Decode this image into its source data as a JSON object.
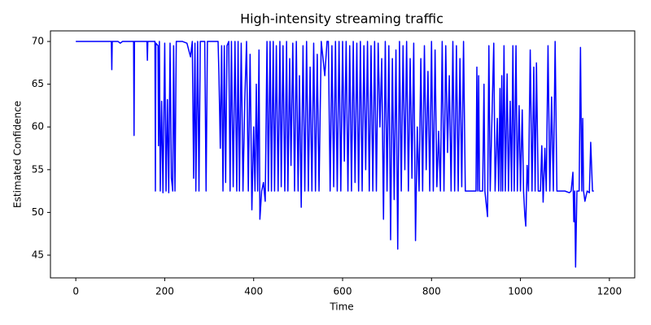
{
  "chart_data": {
    "type": "line",
    "title": "High-intensity streaming traffic",
    "xlabel": "Time",
    "ylabel": "Estimated Confidence",
    "color": "#0000ff",
    "x": [
      0,
      80,
      81,
      82,
      95,
      100,
      105,
      130,
      131,
      132,
      160,
      161,
      162,
      178,
      179,
      180,
      185,
      186,
      188,
      190,
      193,
      196,
      200,
      203,
      206,
      209,
      212,
      215,
      218,
      220,
      223,
      226,
      240,
      250,
      258,
      262,
      265,
      268,
      270,
      274,
      277,
      280,
      290,
      293,
      296,
      320,
      322,
      325,
      328,
      331,
      334,
      337,
      340,
      344,
      347,
      350,
      354,
      358,
      362,
      365,
      368,
      372,
      376,
      380,
      384,
      388,
      392,
      396,
      400,
      403,
      406,
      409,
      412,
      414,
      418,
      422,
      426,
      430,
      433,
      437,
      440,
      444,
      447,
      451,
      455,
      459,
      462,
      466,
      470,
      474,
      477,
      481,
      484,
      488,
      492,
      496,
      500,
      503,
      507,
      511,
      515,
      519,
      523,
      527,
      531,
      535,
      539,
      543,
      547,
      552,
      560,
      565,
      568,
      572,
      576,
      580,
      584,
      588,
      592,
      596,
      600,
      604,
      608,
      612,
      616,
      620,
      624,
      628,
      632,
      636,
      640,
      644,
      648,
      652,
      656,
      660,
      664,
      668,
      672,
      676,
      680,
      684,
      688,
      692,
      696,
      700,
      704,
      708,
      712,
      716,
      720,
      724,
      728,
      732,
      736,
      740,
      744,
      748,
      752,
      756,
      760,
      764,
      768,
      772,
      776,
      780,
      784,
      788,
      792,
      796,
      800,
      804,
      808,
      812,
      816,
      820,
      824,
      828,
      832,
      836,
      840,
      844,
      848,
      852,
      856,
      860,
      864,
      868,
      872,
      876,
      900,
      902,
      904,
      906,
      908,
      915,
      918,
      920,
      926,
      929,
      932,
      940,
      943,
      948,
      951,
      954,
      956,
      958,
      960,
      963,
      966,
      970,
      973,
      977,
      980,
      983,
      986,
      990,
      993,
      997,
      1000,
      1004,
      1007,
      1010,
      1012,
      1015,
      1018,
      1022,
      1026,
      1030,
      1033,
      1036,
      1040,
      1045,
      1048,
      1051,
      1055,
      1058,
      1062,
      1066,
      1070,
      1074,
      1078,
      1082,
      1100,
      1110,
      1114,
      1118,
      1120,
      1122,
      1124,
      1127,
      1132,
      1135,
      1138,
      1140,
      1142,
      1145,
      1150,
      1155,
      1158,
      1162,
      1165
    ],
    "values": [
      70,
      70,
      66.7,
      70,
      70,
      69.8,
      70,
      70,
      59,
      70,
      70,
      67.8,
      70,
      70,
      52.5,
      69.8,
      69.5,
      57.8,
      70,
      52.5,
      63,
      52.3,
      69.8,
      52.5,
      63.2,
      52.3,
      69.8,
      54,
      52.5,
      69.5,
      52.5,
      70,
      70,
      69.8,
      68.2,
      70,
      54,
      69.8,
      52.5,
      70,
      52.5,
      70,
      70,
      52.5,
      70,
      70,
      66,
      57.5,
      69.5,
      52.5,
      69.5,
      53.5,
      69.5,
      70,
      52.5,
      70,
      53,
      70,
      52.5,
      70,
      52.5,
      69.8,
      52.5,
      63,
      70,
      52.5,
      68.5,
      50.3,
      60,
      52.5,
      65,
      52.5,
      69,
      49.2,
      52.5,
      53.5,
      51.3,
      70,
      52.5,
      70,
      52.5,
      70,
      52.5,
      69.5,
      52.5,
      70,
      53,
      69.5,
      52.5,
      70,
      52.5,
      68,
      55.5,
      69.8,
      52.5,
      70,
      52.5,
      66,
      50.6,
      69.5,
      52.5,
      70,
      52.5,
      67,
      52.5,
      69.8,
      52.5,
      68.5,
      52.5,
      70,
      66,
      70,
      70,
      52.5,
      69.5,
      53,
      70,
      52.5,
      70,
      52.5,
      70,
      56,
      70,
      52.5,
      69.5,
      52.5,
      70,
      53.5,
      69.8,
      52.5,
      70,
      52.5,
      69.5,
      55,
      70,
      52.5,
      69.5,
      52.5,
      70,
      52.5,
      69.8,
      60,
      68,
      49.2,
      70,
      52.5,
      69.5,
      46.8,
      68,
      51.5,
      69,
      45.7,
      70,
      52.5,
      69.5,
      55,
      70,
      52.5,
      68,
      54,
      69.8,
      46.7,
      60,
      52.5,
      68,
      52.5,
      69.5,
      55,
      66.5,
      52.5,
      70,
      52.5,
      69,
      53,
      59.5,
      52.5,
      70,
      52.5,
      69.5,
      57,
      66,
      52.5,
      70,
      52.5,
      69.5,
      52.5,
      68,
      53,
      70,
      52.5,
      52.5,
      67,
      52.5,
      66,
      52.5,
      52.5,
      65,
      52.5,
      49.5,
      69.5,
      52.5,
      69.8,
      52.5,
      61,
      52.5,
      64.5,
      52.5,
      66,
      52.5,
      69.5,
      52.5,
      66.2,
      52.5,
      63,
      52.5,
      69.5,
      52.5,
      69.5,
      52.5,
      62.5,
      52.5,
      62,
      52.5,
      49.5,
      48.4,
      55.5,
      52.5,
      69,
      52.5,
      67,
      52.5,
      67.5,
      52.5,
      52.5,
      57.8,
      51.2,
      57.5,
      52.5,
      69.5,
      52.5,
      63.5,
      52.5,
      70,
      52.5,
      52.5,
      52.3,
      52.5,
      54.7,
      48.9,
      52.5,
      43.6,
      52.5,
      52.5,
      69.3,
      52.5,
      61,
      52.5,
      51.3,
      52.5,
      52.3,
      58.2,
      52.5,
      52.5
    ],
    "xlim": [
      -57,
      1257
    ],
    "ylim": [
      42.34,
      71.24
    ],
    "xticks": [
      0,
      200,
      400,
      600,
      800,
      1000,
      1200
    ],
    "yticks": [
      45,
      50,
      55,
      60,
      65,
      70
    ]
  }
}
